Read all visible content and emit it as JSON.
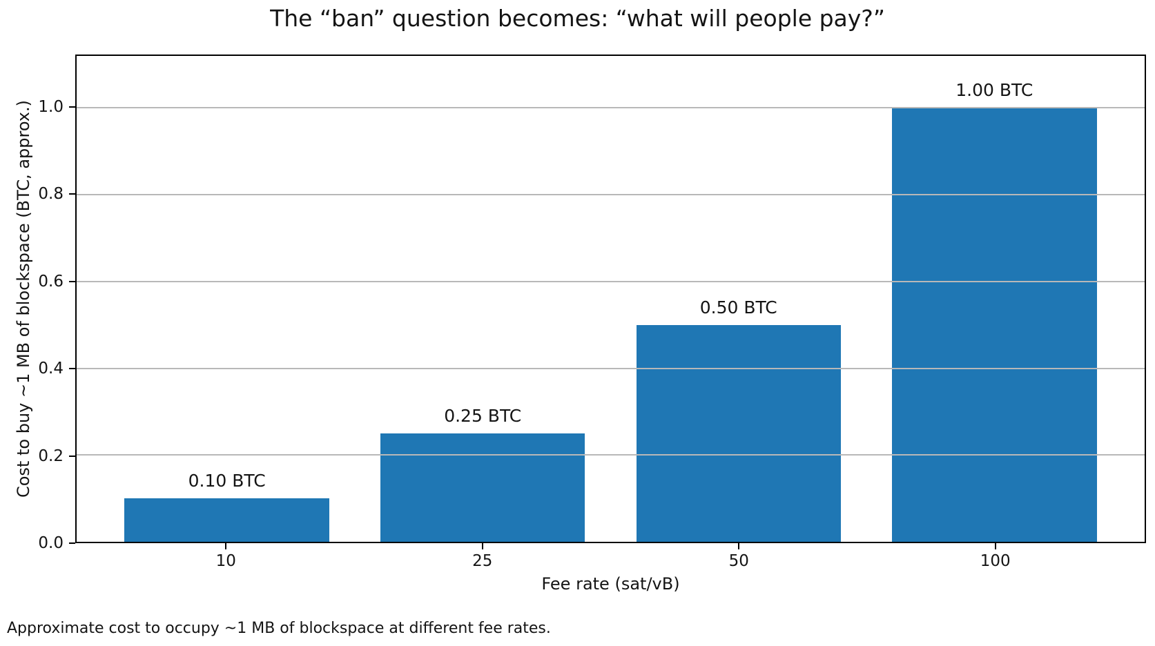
{
  "chart_data": {
    "type": "bar",
    "title": "The “ban” question becomes: “what will people pay?”",
    "categories": [
      "10",
      "25",
      "50",
      "100"
    ],
    "values": [
      0.1,
      0.25,
      0.5,
      1.0
    ],
    "bar_labels": [
      "0.10 BTC",
      "0.25 BTC",
      "0.50 BTC",
      "1.00 BTC"
    ],
    "xlabel": "Fee rate (sat/vB)",
    "ylabel": "Cost to buy ~1 MB of blockspace (BTC, approx.)",
    "yticks": [
      0,
      0.2,
      0.4,
      0.6,
      0.8,
      1.0
    ],
    "ytick_labels": [
      "0.0",
      "0.2",
      "0.4",
      "0.6",
      "0.8",
      "1.0"
    ],
    "ylim": [
      0,
      1.12
    ],
    "xlim": [
      -0.5875,
      3.5875
    ],
    "bar_width": 0.8,
    "bar_color": "#1f77b4",
    "grid": {
      "axis": "y",
      "color": "#b8b8b8",
      "above_bars": true
    },
    "legend_position": "none",
    "caption": "Approximate cost to occupy ~1 MB of blockspace at different fee rates."
  }
}
